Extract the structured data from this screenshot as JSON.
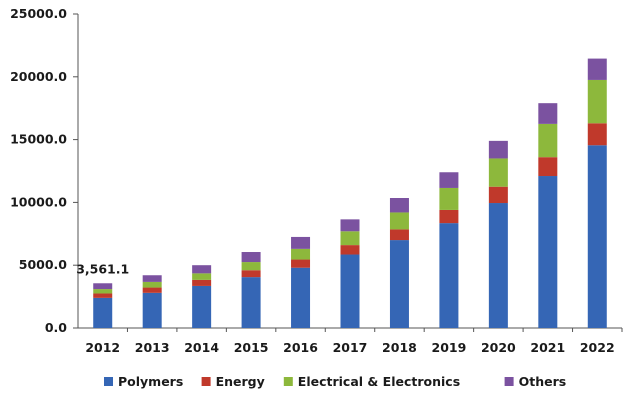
{
  "chart_data": {
    "type": "bar",
    "stacked": true,
    "categories": [
      "2012",
      "2013",
      "2014",
      "2015",
      "2016",
      "2017",
      "2018",
      "2019",
      "2020",
      "2021",
      "2022"
    ],
    "series": [
      {
        "name": "Polymers",
        "color": "#3566b5",
        "values": [
          2400,
          2800,
          3350,
          4050,
          4800,
          5850,
          7000,
          8350,
          9950,
          12100,
          14550
        ]
      },
      {
        "name": "Energy",
        "color": "#c0392b",
        "values": [
          350,
          420,
          480,
          550,
          650,
          750,
          850,
          1050,
          1300,
          1500,
          1750
        ]
      },
      {
        "name": "Electrical & Electronics",
        "color": "#8db83c",
        "values": [
          350,
          450,
          520,
          650,
          850,
          1100,
          1350,
          1750,
          2250,
          2650,
          3450
        ]
      },
      {
        "name": "Others",
        "color": "#7b52a0",
        "values": [
          461.1,
          530,
          650,
          800,
          950,
          950,
          1150,
          1250,
          1400,
          1650,
          1700
        ]
      }
    ],
    "ylim": [
      0,
      25000
    ],
    "yticks": [
      "0.0",
      "5000.0",
      "10000.0",
      "15000.0",
      "20000.0",
      "25000.0"
    ],
    "ytick_values": [
      0,
      5000,
      10000,
      15000,
      20000,
      25000
    ],
    "annotations": [
      {
        "category": "2012",
        "text": "3,561.1"
      }
    ],
    "legend_position": "bottom",
    "grid": false
  }
}
